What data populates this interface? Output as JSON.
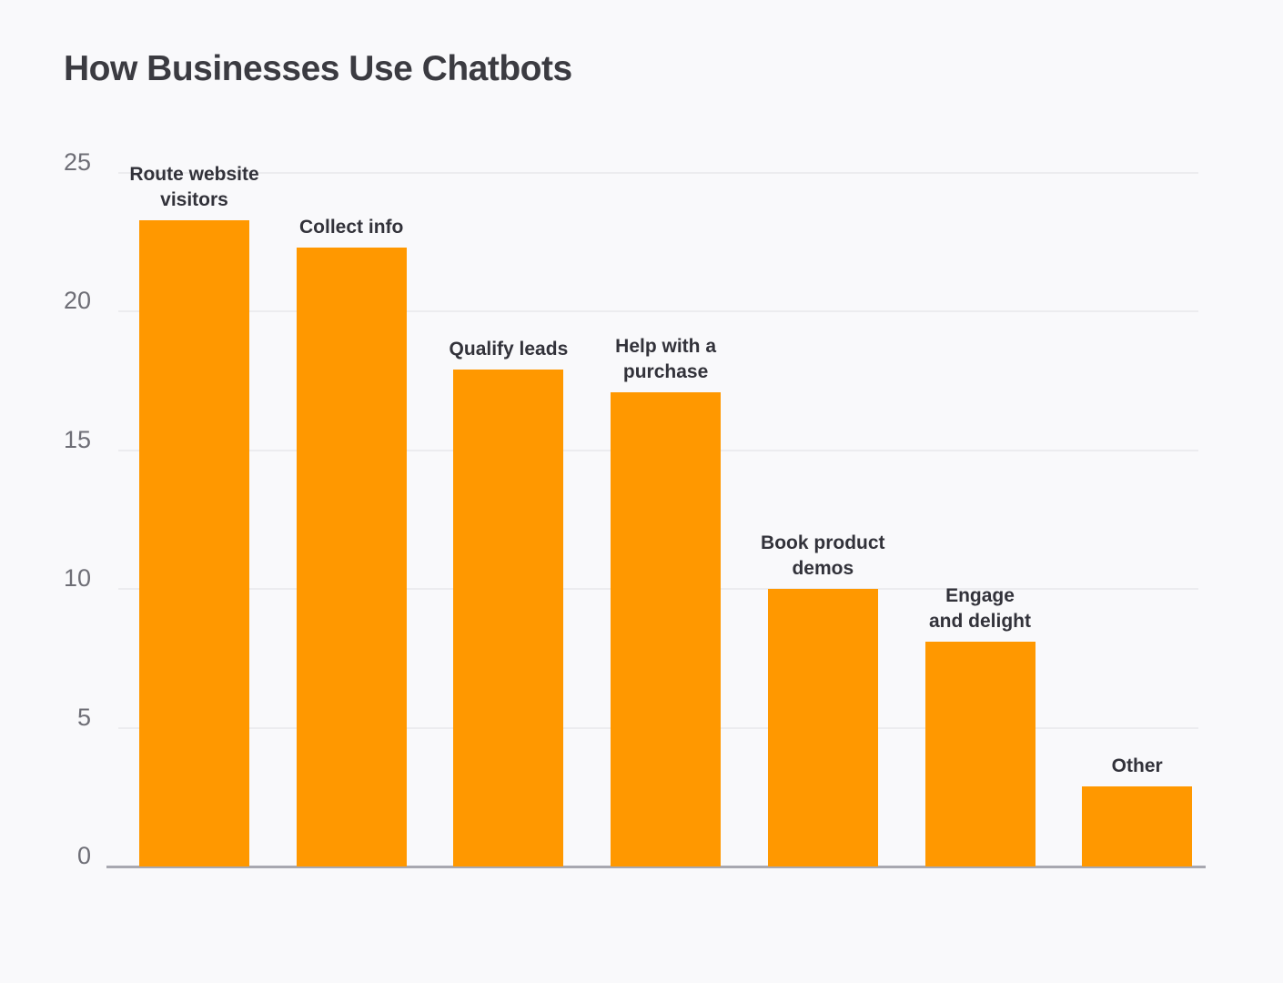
{
  "title": "How Businesses Use Chatbots",
  "chart_data": {
    "type": "bar",
    "title": "How Businesses Use Chatbots",
    "categories": [
      "Route website visitors",
      "Collect info",
      "Qualify leads",
      "Help with a purchase",
      "Book product demos",
      "Engage and delight",
      "Other"
    ],
    "category_lines": [
      [
        "Route website",
        "visitors"
      ],
      [
        "Collect info"
      ],
      [
        "Qualify leads"
      ],
      [
        "Help with a",
        "purchase"
      ],
      [
        "Book product",
        "demos"
      ],
      [
        "Engage",
        "and delight"
      ],
      [
        "Other"
      ]
    ],
    "values": [
      23.3,
      22.3,
      17.9,
      17.1,
      10,
      8.1,
      2.9
    ],
    "xlabel": "",
    "ylabel": "",
    "ylim": [
      0,
      25
    ],
    "yticks": [
      0,
      5,
      10,
      15,
      20,
      25
    ],
    "grid": true,
    "legend": "none",
    "colors": {
      "bar": "#FF9800",
      "background": "#F9F9FB",
      "title": "#3B3B41",
      "bar_label": "#32323A",
      "tick_label": "#6E6E76",
      "gridline": "#ECECEF",
      "axis_line": "#A8A8B0"
    }
  }
}
